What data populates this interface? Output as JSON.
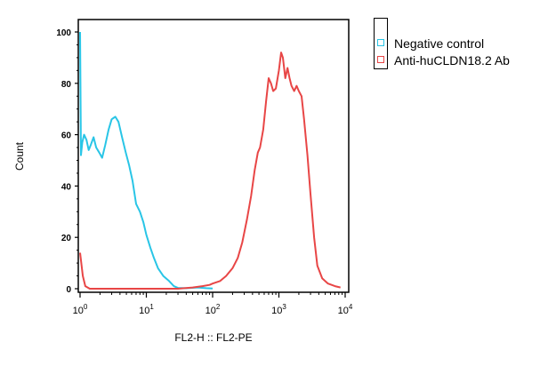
{
  "chart_data": {
    "type": "line",
    "title": "",
    "xlabel": "FL2-H :: FL2-PE",
    "ylabel": "Count",
    "x_scale": "log",
    "xlim": [
      1,
      10000
    ],
    "ylim": [
      0,
      100
    ],
    "y_ticks": [
      "0",
      "20",
      "40",
      "60",
      "80",
      "100"
    ],
    "x_ticks": [
      {
        "base": "10",
        "exp": "0"
      },
      {
        "base": "10",
        "exp": "1"
      },
      {
        "base": "10",
        "exp": "2"
      },
      {
        "base": "10",
        "exp": "3"
      },
      {
        "base": "10",
        "exp": "4"
      }
    ],
    "legend": {
      "position": "top-right",
      "entries": [
        "Negative control",
        "Anti-huCLDN18.2 Ab"
      ]
    },
    "series": [
      {
        "name": "Negative control",
        "color": "#29c5e6",
        "points": [
          [
            1.0,
            100
          ],
          [
            1.03,
            52
          ],
          [
            1.08,
            57
          ],
          [
            1.15,
            60
          ],
          [
            1.25,
            58
          ],
          [
            1.35,
            54
          ],
          [
            1.45,
            56
          ],
          [
            1.6,
            59
          ],
          [
            1.75,
            55
          ],
          [
            1.95,
            53
          ],
          [
            2.15,
            51
          ],
          [
            2.4,
            56
          ],
          [
            2.7,
            62
          ],
          [
            3.0,
            66
          ],
          [
            3.4,
            67
          ],
          [
            3.8,
            65
          ],
          [
            4.3,
            59
          ],
          [
            4.9,
            53
          ],
          [
            5.5,
            48
          ],
          [
            6.2,
            42
          ],
          [
            7.0,
            33
          ],
          [
            8.0,
            30
          ],
          [
            9.0,
            26
          ],
          [
            10.0,
            21
          ],
          [
            11.5,
            16
          ],
          [
            13.0,
            12
          ],
          [
            15.0,
            8
          ],
          [
            18.0,
            5
          ],
          [
            22.0,
            3
          ],
          [
            26.0,
            1
          ],
          [
            30.0,
            0.3
          ],
          [
            40.0,
            0.2
          ],
          [
            60.0,
            0.5
          ],
          [
            80.0,
            0.2
          ],
          [
            100.0,
            0.1
          ]
        ]
      },
      {
        "name": "Anti-huCLDN18.2 Ab",
        "color": "#e84646",
        "points": [
          [
            1.0,
            14
          ],
          [
            1.1,
            5
          ],
          [
            1.2,
            1
          ],
          [
            1.4,
            0
          ],
          [
            3.0,
            0
          ],
          [
            8.0,
            0
          ],
          [
            12.0,
            0
          ],
          [
            30.0,
            0
          ],
          [
            50.0,
            0.5
          ],
          [
            70.0,
            1
          ],
          [
            90.0,
            1.5
          ],
          [
            100.0,
            2
          ],
          [
            130.0,
            3
          ],
          [
            160.0,
            5
          ],
          [
            200.0,
            8
          ],
          [
            240.0,
            12
          ],
          [
            280.0,
            18
          ],
          [
            330.0,
            27
          ],
          [
            380.0,
            36
          ],
          [
            430.0,
            46
          ],
          [
            480.0,
            53
          ],
          [
            520.0,
            55
          ],
          [
            580.0,
            62
          ],
          [
            640.0,
            73
          ],
          [
            700.0,
            82
          ],
          [
            760.0,
            80
          ],
          [
            820.0,
            77
          ],
          [
            900.0,
            78
          ],
          [
            1000.0,
            85
          ],
          [
            1080.0,
            92
          ],
          [
            1150.0,
            90
          ],
          [
            1250.0,
            82
          ],
          [
            1350.0,
            86
          ],
          [
            1450.0,
            82
          ],
          [
            1550.0,
            79
          ],
          [
            1700.0,
            77
          ],
          [
            1850.0,
            79
          ],
          [
            2000.0,
            77
          ],
          [
            2200.0,
            75
          ],
          [
            2400.0,
            66
          ],
          [
            2700.0,
            52
          ],
          [
            3000.0,
            37
          ],
          [
            3400.0,
            20
          ],
          [
            3800.0,
            9
          ],
          [
            4500.0,
            4
          ],
          [
            5500.0,
            2
          ],
          [
            7000.0,
            1
          ],
          [
            8500.0,
            0.5
          ]
        ]
      }
    ]
  }
}
